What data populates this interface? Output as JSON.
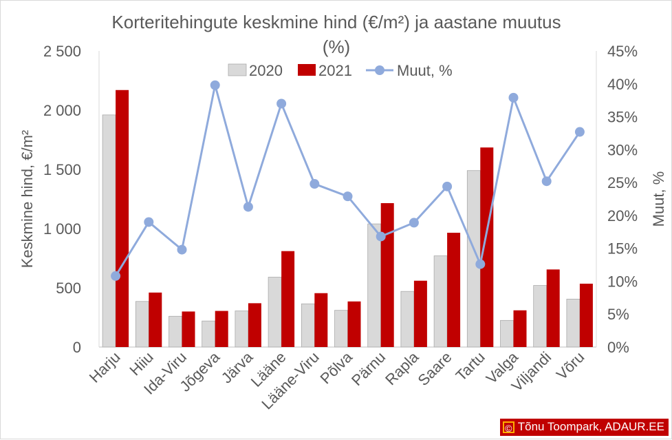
{
  "chart_data": {
    "type": "bar",
    "title": "Korteritehingute keskmine hind (€/m²) ja aastane muutus (%)",
    "categories": [
      "Harju",
      "Hiiu",
      "Ida-Viru",
      "Jõgeva",
      "Järva",
      "Lääne",
      "Lääne-Viru",
      "Põlva",
      "Pärnu",
      "Rapla",
      "Saare",
      "Tartu",
      "Valga",
      "Viljandi",
      "Võru"
    ],
    "series": [
      {
        "name": "2020",
        "type": "bar",
        "axis": "left",
        "color": "#d9d9d9",
        "values": [
          1960,
          385,
          260,
          220,
          305,
          590,
          365,
          310,
          1040,
          470,
          770,
          1490,
          225,
          520,
          405
        ]
      },
      {
        "name": "2021",
        "type": "bar",
        "axis": "left",
        "color": "#c00000",
        "values": [
          2170,
          460,
          300,
          305,
          370,
          810,
          455,
          385,
          1215,
          560,
          965,
          1685,
          310,
          655,
          535
        ]
      },
      {
        "name": "Muut, %",
        "type": "line",
        "axis": "right",
        "color": "#8faadc",
        "values": [
          10.8,
          19.0,
          14.8,
          39.8,
          21.3,
          37.0,
          24.8,
          22.9,
          16.8,
          18.9,
          24.4,
          12.6,
          37.9,
          25.2,
          32.7
        ]
      }
    ],
    "ylabel": "Keskmine hind, €/m²",
    "y2label": "Muut, %",
    "ylim": [
      0,
      2500
    ],
    "yticks": [
      0,
      500,
      1000,
      1500,
      2000,
      2500
    ],
    "ytick_labels": [
      "0",
      "500",
      "1 000",
      "1 500",
      "2 000",
      "2 500"
    ],
    "y2lim": [
      0,
      45
    ],
    "y2ticks": [
      0,
      5,
      10,
      15,
      20,
      25,
      30,
      35,
      40,
      45
    ],
    "y2tick_labels": [
      "0%",
      "5%",
      "10%",
      "15%",
      "20%",
      "25%",
      "30%",
      "35%",
      "40%",
      "45%"
    ],
    "grid": false,
    "legend": "top-center"
  },
  "credit": {
    "icon": "copyright-icon",
    "symbol": "©",
    "text": "Tõnu Toompark, ADAUR.EE",
    "background": "#c00000"
  }
}
